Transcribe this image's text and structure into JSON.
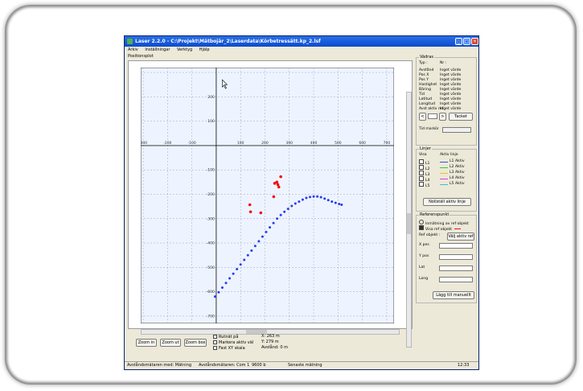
{
  "window": {
    "title": "Laser 2.2.0 - C:\\Projekt\\Mätbojär_2\\Laserdata\\Körbetressätt.kp_2.lsf",
    "minimize_glyph": "_",
    "maximize_glyph": "□",
    "close_glyph": "×"
  },
  "menu": [
    "Arkiv",
    "Inställningar",
    "Verktyg",
    "Hjälp"
  ],
  "plot_group_label": "Positionsplot",
  "plot": {
    "x_ticks": [
      "-300",
      "-200",
      "-100",
      "100",
      "200",
      "300",
      "400",
      "500",
      "600",
      "700"
    ],
    "y_ticks": [
      "200",
      "100",
      "-100",
      "-200",
      "-300",
      "-400",
      "-500",
      "-600",
      "-700"
    ],
    "colors": {
      "blue": "#2b3cf0",
      "red": "#ee1111",
      "grid": "#9aa6c4",
      "bg": "#eef4ff"
    }
  },
  "chart_data": {
    "type": "scatter",
    "xlim": [
      -310,
      730
    ],
    "ylim": [
      -730,
      320
    ],
    "grid": true,
    "series": [
      {
        "values": [
          [
            -5,
            -620
          ],
          [
            10,
            -602
          ],
          [
            25,
            -583
          ],
          [
            40,
            -564
          ],
          [
            55,
            -545
          ],
          [
            70,
            -526
          ],
          [
            85,
            -507
          ],
          [
            100,
            -488
          ],
          [
            115,
            -469
          ],
          [
            130,
            -450
          ],
          [
            145,
            -431
          ],
          [
            160,
            -412
          ],
          [
            175,
            -393
          ],
          [
            190,
            -374
          ],
          [
            205,
            -355
          ],
          [
            220,
            -336
          ],
          [
            235,
            -318
          ],
          [
            250,
            -300
          ],
          [
            265,
            -285
          ],
          [
            280,
            -272
          ],
          [
            295,
            -260
          ],
          [
            310,
            -248
          ],
          [
            325,
            -238
          ],
          [
            340,
            -230
          ],
          [
            355,
            -222
          ],
          [
            370,
            -215
          ],
          [
            385,
            -211
          ],
          [
            400,
            -209
          ],
          [
            415,
            -209
          ],
          [
            430,
            -212
          ],
          [
            445,
            -218
          ],
          [
            460,
            -224
          ],
          [
            475,
            -230
          ],
          [
            490,
            -235
          ],
          [
            505,
            -240
          ],
          [
            515,
            -243
          ]
        ]
      },
      {
        "values": [
          [
            138,
            -243
          ],
          [
            141,
            -272
          ],
          [
            183,
            -276
          ],
          [
            236,
            -210
          ],
          [
            240,
            -155
          ],
          [
            249,
            -150
          ],
          [
            253,
            -160
          ],
          [
            265,
            -128
          ],
          [
            257,
            -170
          ]
        ]
      }
    ]
  },
  "buttons": {
    "zoom_in": "Zoom in",
    "zoom_out": "Zoom ut",
    "zoom_box": "Zoom box"
  },
  "checkboxes": [
    "Rutnät på",
    "Markera aktiv väl",
    "Fast XY skala"
  ],
  "readout": [
    "X: 263 m",
    "Y: 279 m",
    "Avstånd: 0 m"
  ],
  "sidebar": {
    "vardes_title": "Vädras",
    "vardes_header": [
      "Typ :",
      "Nr :"
    ],
    "vardes_rows": [
      {
        "k": "Avstånd",
        "v": "Inget värde"
      },
      {
        "k": "Pos X",
        "v": "Inget värde"
      },
      {
        "k": "Pos Y",
        "v": "Inget värde"
      },
      {
        "k": "Hastighet",
        "v": "Inget värde"
      },
      {
        "k": "Bäring",
        "v": "Inget värde"
      },
      {
        "k": "Tid",
        "v": "Inget värde"
      },
      {
        "k": "Latitud",
        "v": "Inget värde"
      },
      {
        "k": "Longitud",
        "v": "Inget värde"
      },
      {
        "k": "Avst aktiv ref",
        "v": "Inget värde"
      }
    ],
    "nav_prev": "<",
    "nav_next": ">",
    "tacket_button": "Tacket",
    "timer_label": "Tid markör",
    "lines_title": "Linjer",
    "lines_header": [
      "Visa",
      "Aktiv linje"
    ],
    "lines": [
      {
        "name": "L1",
        "color": "#3b4cf5",
        "label": "L1 Aktiv"
      },
      {
        "name": "L2",
        "color": "#3dc63d",
        "label": "L2 Aktiv"
      },
      {
        "name": "L3",
        "color": "#f0c020",
        "label": "L3 Aktiv"
      },
      {
        "name": "L4",
        "color": "#e040e0",
        "label": "L4 Aktiv"
      },
      {
        "name": "L5",
        "color": "#36c4d8",
        "label": "L5 Aktiv"
      }
    ],
    "new_line_button": "Nollställ aktiv linje",
    "ref_title": "Referenspunkt",
    "ref_options": [
      "Inmätning av ref objekt",
      "Visa ref objekt"
    ],
    "ref_selected_label": "Ref objekt :",
    "ref_select_button": "Välj aktiv ref",
    "fields": [
      "X pos",
      "Y pos",
      "Lat",
      "Long"
    ],
    "add_button": "Lägg till manuellt"
  },
  "statusbar": [
    "Avståndsmätaren med: Mätning",
    "Avståndsmätaren: Com 1",
    "9600 b",
    "Senaste mätning",
    "12:33"
  ]
}
